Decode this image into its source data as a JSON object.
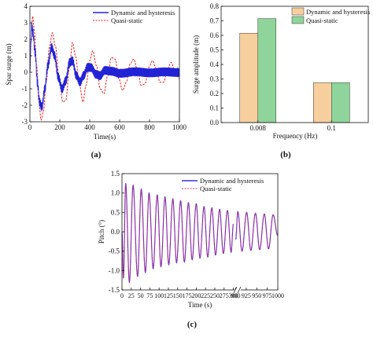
{
  "chart_data": [
    {
      "type": "line",
      "panel_label": "(a)",
      "xlabel": "Time(s)",
      "ylabel": "Spar surge (m)",
      "xlim": [
        0,
        1000
      ],
      "ylim": [
        -3,
        4
      ],
      "xticks": [
        "0",
        "200",
        "400",
        "600",
        "800",
        "1000"
      ],
      "yticks": [
        "-3",
        "-2",
        "-1",
        "0",
        "1",
        "2",
        "3",
        "4"
      ],
      "grid": false,
      "legend_position": "top-right",
      "series": [
        {
          "name": "Dynamic and hysteresis",
          "color": "#2323d6",
          "style": "solid",
          "points": [
            [
              0,
              0
            ],
            [
              5,
              1.5
            ],
            [
              12,
              2.8
            ],
            [
              20,
              2.4
            ],
            [
              35,
              1.2
            ],
            [
              50,
              -0.6
            ],
            [
              65,
              -1.8
            ],
            [
              80,
              -2.1
            ],
            [
              100,
              -1.0
            ],
            [
              120,
              0.4
            ],
            [
              145,
              1.5
            ],
            [
              165,
              1.0
            ],
            [
              190,
              -0.3
            ],
            [
              215,
              -1.0
            ],
            [
              240,
              -0.5
            ],
            [
              265,
              0.6
            ],
            [
              285,
              0.7
            ],
            [
              310,
              -0.2
            ],
            [
              335,
              -0.6
            ],
            [
              360,
              -0.2
            ],
            [
              385,
              0.3
            ],
            [
              410,
              0.3
            ],
            [
              440,
              -0.1
            ],
            [
              470,
              -0.2
            ],
            [
              500,
              0.1
            ],
            [
              550,
              0.05
            ],
            [
              600,
              -0.05
            ],
            [
              700,
              0.02
            ],
            [
              800,
              -0.02
            ],
            [
              900,
              0.01
            ],
            [
              1000,
              0
            ]
          ],
          "oscillation_amplitude": 0.28
        },
        {
          "name": "Quasi-static",
          "color": "#e02020",
          "style": "dashed",
          "points": [
            [
              0,
              0
            ],
            [
              8,
              2.0
            ],
            [
              18,
              3.4
            ],
            [
              30,
              2.5
            ],
            [
              45,
              0.4
            ],
            [
              60,
              -1.8
            ],
            [
              75,
              -2.9
            ],
            [
              90,
              -2.4
            ],
            [
              110,
              -0.5
            ],
            [
              130,
              1.5
            ],
            [
              150,
              2.4
            ],
            [
              170,
              1.6
            ],
            [
              195,
              -0.3
            ],
            [
              220,
              -1.8
            ],
            [
              240,
              -1.7
            ],
            [
              265,
              0.3
            ],
            [
              285,
              1.8
            ],
            [
              305,
              1.0
            ],
            [
              330,
              -0.7
            ],
            [
              355,
              -1.8
            ],
            [
              375,
              -0.8
            ],
            [
              400,
              0.7
            ],
            [
              420,
              1.3
            ],
            [
              445,
              0.4
            ],
            [
              470,
              -1.0
            ],
            [
              495,
              -1.3
            ],
            [
              520,
              -0.2
            ],
            [
              545,
              0.9
            ],
            [
              570,
              0.8
            ],
            [
              595,
              -0.4
            ],
            [
              620,
              -1.1
            ],
            [
              645,
              -0.6
            ],
            [
              670,
              0.5
            ],
            [
              695,
              0.8
            ],
            [
              720,
              0.1
            ],
            [
              745,
              -0.8
            ],
            [
              770,
              -0.7
            ],
            [
              795,
              0.3
            ],
            [
              820,
              0.7
            ],
            [
              845,
              0.2
            ],
            [
              870,
              -0.6
            ],
            [
              895,
              -0.6
            ],
            [
              920,
              0.2
            ],
            [
              945,
              0.6
            ],
            [
              970,
              0.1
            ],
            [
              1000,
              -0.4
            ]
          ]
        }
      ]
    },
    {
      "type": "bar",
      "panel_label": "(b)",
      "xlabel": "Frequency (Hz)",
      "ylabel": "Surge amplitude (m)",
      "categories": [
        "0.008",
        "0.1"
      ],
      "ylim": [
        0,
        0.8
      ],
      "yticks": [
        "0.0",
        "0.1",
        "0.2",
        "0.3",
        "0.4",
        "0.5",
        "0.6",
        "0.7",
        "0.8"
      ],
      "grid": false,
      "legend_position": "top-right",
      "series": [
        {
          "name": "Dynamic and hysteresis",
          "color": "#f7cf9e",
          "values": [
            0.615,
            0.275
          ]
        },
        {
          "name": "Quasi-static",
          "color": "#8fd49a",
          "values": [
            0.715,
            0.275
          ]
        }
      ]
    },
    {
      "type": "line",
      "panel_label": "(c)",
      "xlabel": "Time (s)",
      "ylabel": "Pitch (°)",
      "xticks": [
        "0",
        "25",
        "50",
        "75",
        "100",
        "125",
        "150",
        "175",
        "200",
        "225",
        "250",
        "275",
        "300",
        "900",
        "925",
        "950",
        "975",
        "1000"
      ],
      "x_axis_break": [
        300,
        900
      ],
      "xlim": [
        0,
        1000
      ],
      "ylim": [
        -1.5,
        1.5
      ],
      "yticks": [
        "-1.5",
        "-1.0",
        "-0.5",
        "0.0",
        "0.5",
        "1.0",
        "1.5"
      ],
      "grid": false,
      "legend_position": "top-right",
      "series": [
        {
          "name": "Dynamic and hysteresis",
          "color": "#3b2fd6",
          "style": "solid",
          "peaks": [
            [
              0,
              0
            ],
            [
              4,
              -1.2
            ],
            [
              10,
              1.25
            ],
            [
              20,
              -1.3
            ],
            [
              30,
              1.2
            ],
            [
              42,
              -1.15
            ],
            [
              52,
              1.1
            ],
            [
              63,
              -1.05
            ],
            [
              73,
              1.0
            ],
            [
              84,
              -0.95
            ],
            [
              95,
              0.95
            ],
            [
              105,
              -0.9
            ],
            [
              116,
              0.9
            ],
            [
              126,
              -0.85
            ],
            [
              137,
              0.85
            ],
            [
              147,
              -0.8
            ],
            [
              158,
              0.8
            ],
            [
              168,
              -0.78
            ],
            [
              179,
              0.75
            ],
            [
              189,
              -0.72
            ],
            [
              200,
              0.72
            ],
            [
              210,
              -0.68
            ],
            [
              221,
              0.65
            ],
            [
              231,
              -0.65
            ],
            [
              242,
              0.62
            ],
            [
              252,
              -0.6
            ],
            [
              263,
              0.58
            ],
            [
              273,
              -0.56
            ],
            [
              284,
              0.55
            ],
            [
              294,
              -0.53
            ],
            [
              300,
              0.2
            ],
            [
              900,
              -0.2
            ],
            [
              905,
              0.52
            ],
            [
              915,
              -0.5
            ],
            [
              926,
              0.5
            ],
            [
              936,
              -0.48
            ],
            [
              947,
              0.48
            ],
            [
              957,
              -0.46
            ],
            [
              968,
              0.46
            ],
            [
              978,
              -0.44
            ],
            [
              989,
              0.44
            ],
            [
              1000,
              -0.1
            ]
          ]
        },
        {
          "name": "Quasi-static",
          "color": "#e0306a",
          "style": "dashed"
        }
      ]
    }
  ]
}
